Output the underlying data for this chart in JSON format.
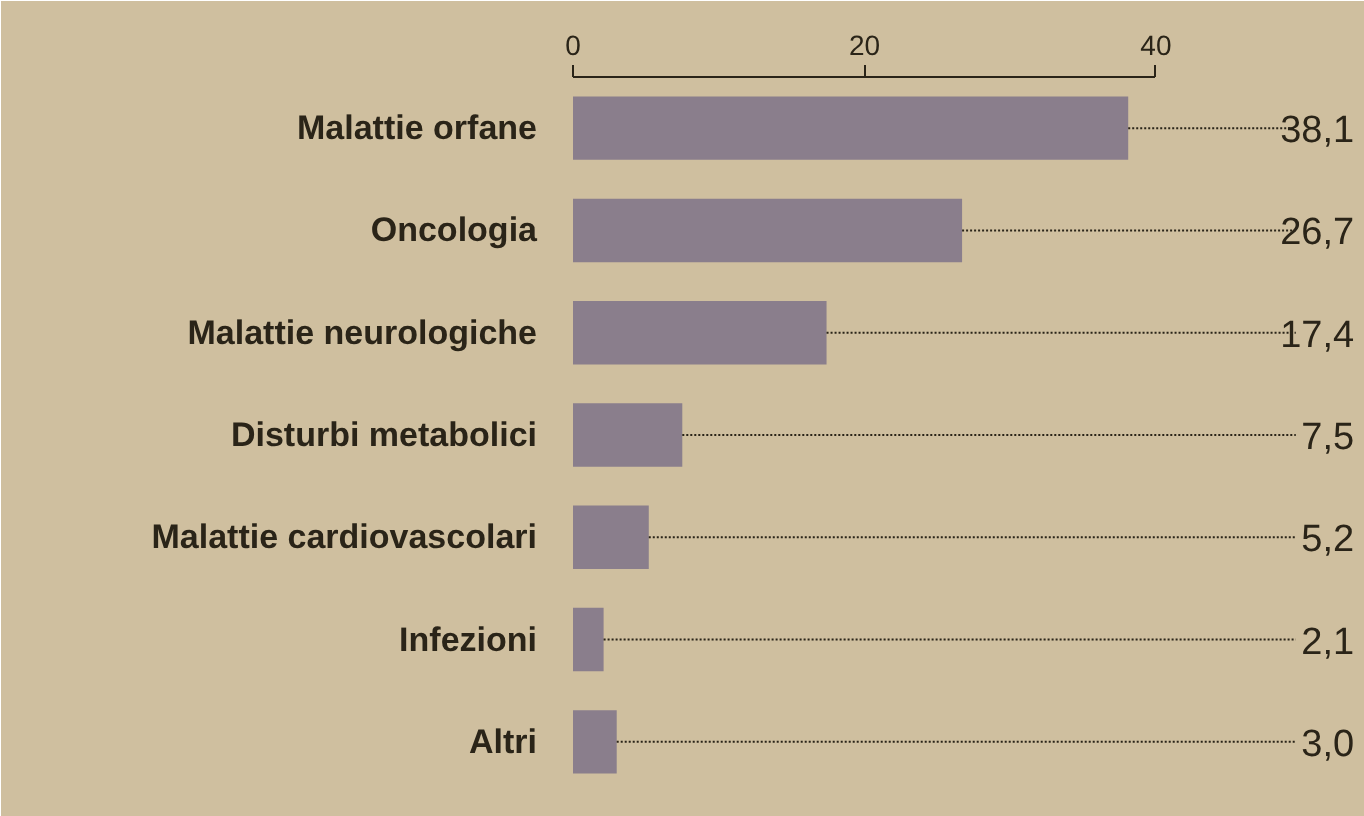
{
  "chart_data": {
    "type": "bar",
    "orientation": "horizontal",
    "categories": [
      "Malattie orfane",
      "Oncologia",
      "Malattie neurologiche",
      "Disturbi metabolici",
      "Malattie cardiovascolari",
      "Infezioni",
      "Altri"
    ],
    "values": [
      38.1,
      26.7,
      17.4,
      7.5,
      5.2,
      2.1,
      3.0
    ],
    "value_labels": [
      "38,1",
      "26,7",
      "17,4",
      "7,5",
      "5,2",
      "2,1",
      "3,0"
    ],
    "color": "#8a7e8c",
    "xlim": [
      0,
      40
    ],
    "xticks": [
      0,
      20,
      40
    ],
    "grid": false
  }
}
